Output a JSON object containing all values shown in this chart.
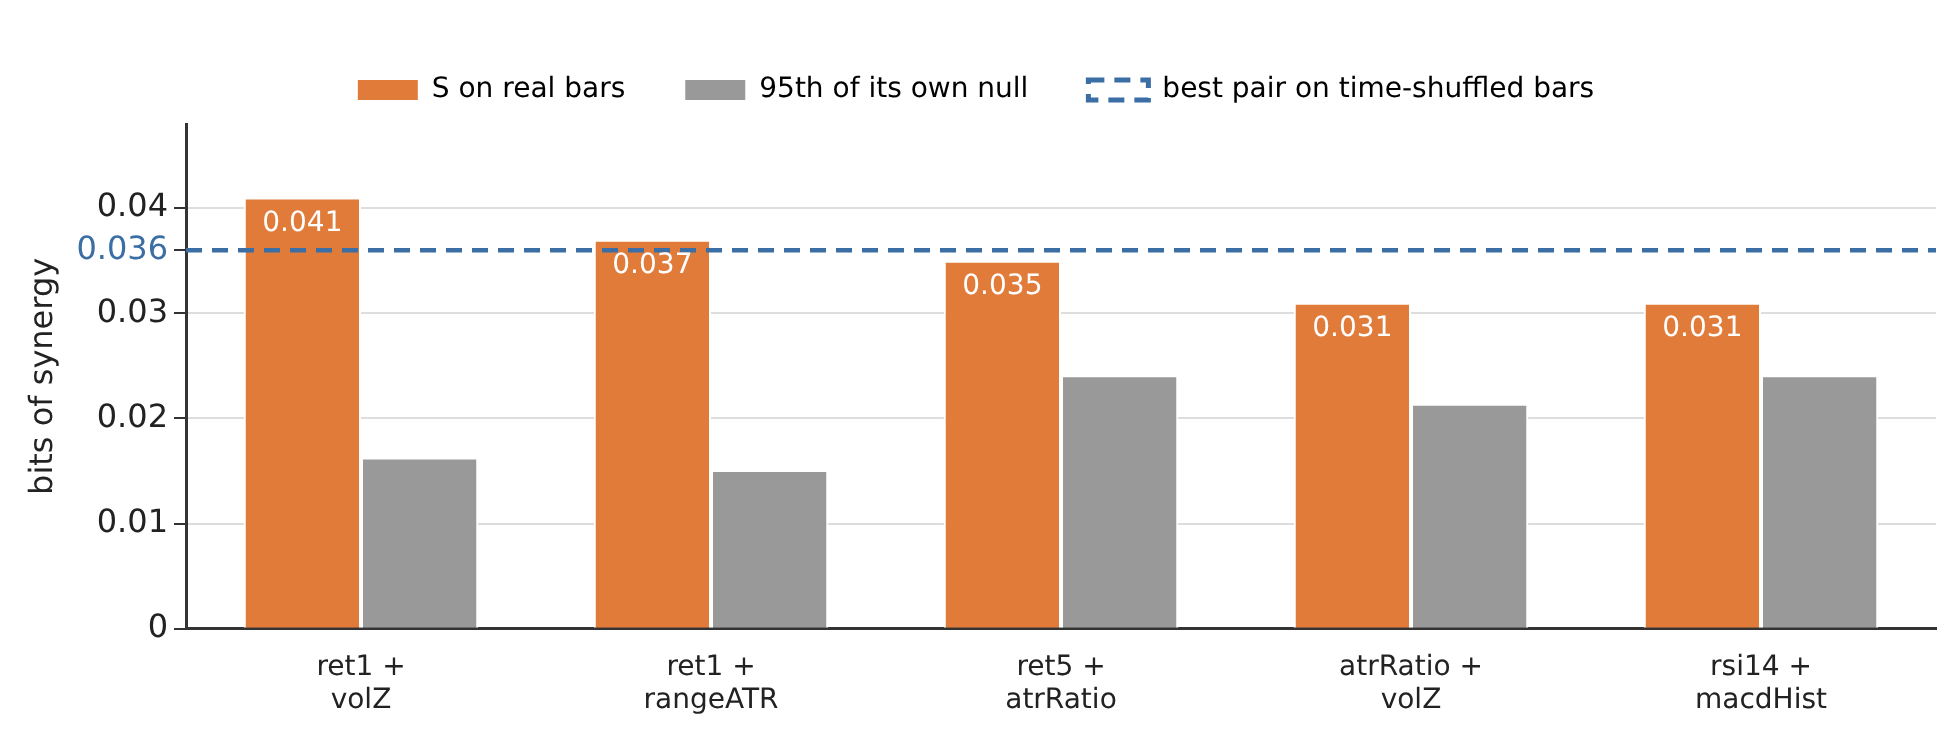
{
  "chart_data": {
    "type": "bar",
    "ylabel": "bits of synergy",
    "categories": [
      "ret1 +\nvolZ",
      "ret1 +\nrangeATR",
      "ret5 +\natrRatio",
      "atrRatio +\nvolZ",
      "rsi14 +\nmacdHist"
    ],
    "series": [
      {
        "name": "S on real bars",
        "color": "#e07b39",
        "values": [
          0.041,
          0.037,
          0.035,
          0.031,
          0.031
        ],
        "value_labels": [
          "0.041",
          "0.037",
          "0.035",
          "0.031",
          "0.031"
        ]
      },
      {
        "name": "95th of its own null",
        "color": "#999999",
        "values": [
          0.0163,
          0.0151,
          0.0241,
          0.0214,
          0.0241
        ]
      }
    ],
    "ylim": [
      0,
      0.048
    ],
    "yticks": [
      0,
      0.01,
      0.02,
      0.03,
      {
        "value": 0.036,
        "label": "0.036"
      },
      0.04
    ],
    "grid": "y",
    "legend": "top",
    "ref_lines": [
      {
        "axis": "y",
        "value": 0.036,
        "label": "best pair on time-shuffled bars",
        "color": "#3a6ea5",
        "line_style": "dashed"
      }
    ]
  }
}
